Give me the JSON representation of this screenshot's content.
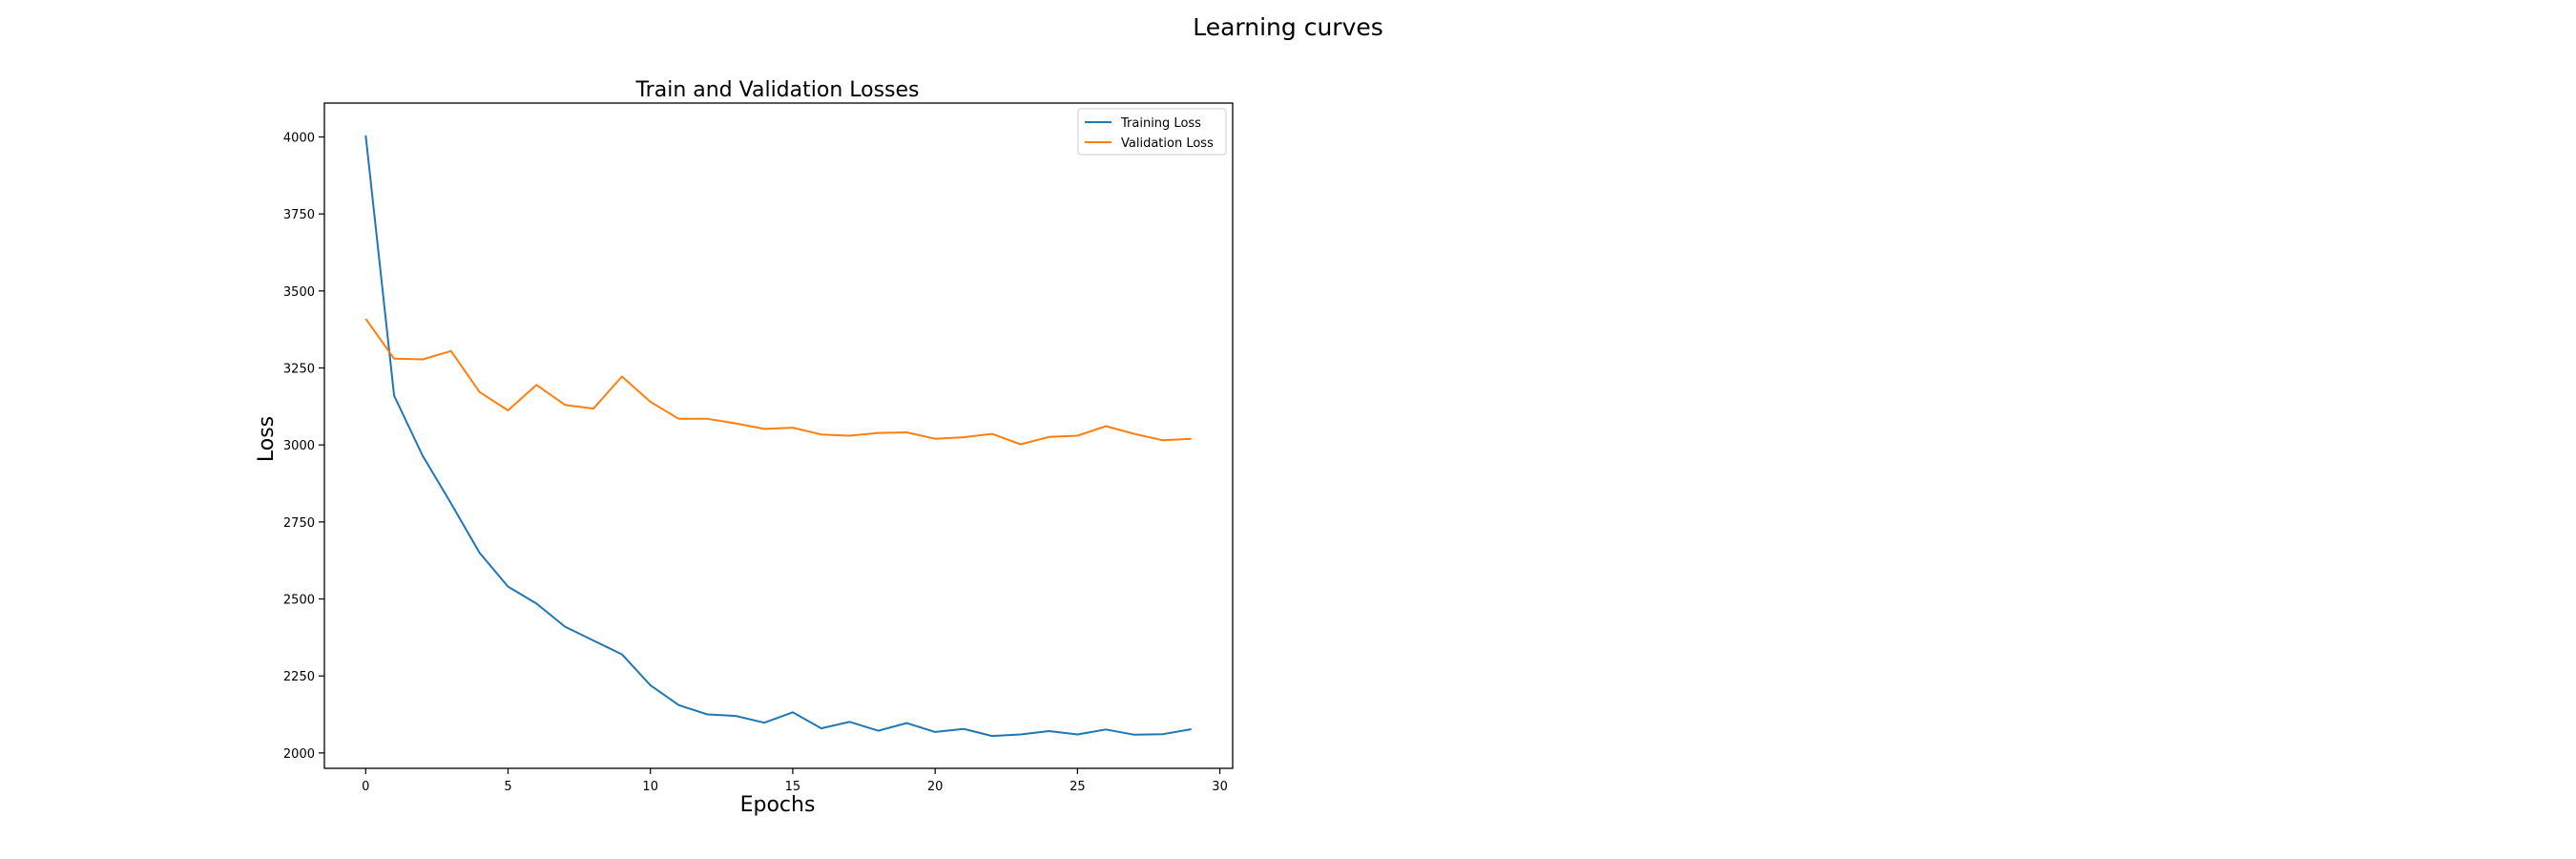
{
  "figure": {
    "suptitle": "Learning curves"
  },
  "chart_data": {
    "type": "line",
    "title": "Train and Validation Losses",
    "xlabel": "Epochs",
    "ylabel": "Loss",
    "xlim": [
      -1.45,
      30.45
    ],
    "ylim": [
      1950,
      4110
    ],
    "xticks": [
      0,
      5,
      10,
      15,
      20,
      25,
      30
    ],
    "yticks": [
      2000,
      2250,
      2500,
      2750,
      3000,
      3250,
      3500,
      3750,
      4000
    ],
    "grid": false,
    "legend": {
      "position": "top-right"
    },
    "x": [
      0,
      1,
      2,
      3,
      4,
      5,
      6,
      7,
      8,
      9,
      10,
      11,
      12,
      13,
      14,
      15,
      16,
      17,
      18,
      19,
      20,
      21,
      22,
      23,
      24,
      25,
      26,
      27,
      28,
      29
    ],
    "series": [
      {
        "name": "Training Loss",
        "color": "#1f77b4",
        "values": [
          4005,
          3160,
          2965,
          2810,
          2650,
          2540,
          2485,
          2410,
          2365,
          2320,
          2220,
          2155,
          2125,
          2120,
          2098,
          2132,
          2080,
          2101,
          2072,
          2097,
          2068,
          2078,
          2055,
          2060,
          2071,
          2060,
          2076,
          2059,
          2061,
          2077
        ]
      },
      {
        "name": "Validation Loss",
        "color": "#ff7f0e",
        "values": [
          3410,
          3280,
          3278,
          3305,
          3172,
          3112,
          3195,
          3130,
          3118,
          3222,
          3140,
          3085,
          3085,
          3070,
          3052,
          3056,
          3034,
          3030,
          3039,
          3041,
          3020,
          3025,
          3036,
          3002,
          3026,
          3030,
          3061,
          3036,
          3015,
          3020
        ]
      }
    ]
  }
}
